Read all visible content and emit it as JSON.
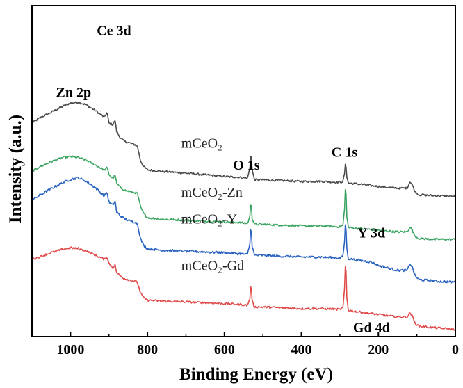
{
  "chart_data": {
    "type": "line",
    "xlabel": "Binding Energy (eV)",
    "ylabel": "Intensity (a.u.)",
    "xlim": [
      1100,
      0
    ],
    "x_reversed": true,
    "y_tick_labels": false,
    "grid": false,
    "x_ticks": [
      1000,
      800,
      600,
      400,
      200,
      0
    ],
    "series": [
      {
        "name": "mCeO₂",
        "color": "#4a4a4a",
        "offset": 3,
        "noise": 0.012,
        "points": [
          [
            1100,
            0.0
          ],
          [
            1080,
            0.06
          ],
          [
            1050,
            0.13
          ],
          [
            1020,
            0.2
          ],
          [
            1000,
            0.24
          ],
          [
            980,
            0.25
          ],
          [
            960,
            0.22
          ],
          [
            935,
            0.15
          ],
          [
            912,
            0.07
          ],
          [
            905,
            0.13
          ],
          [
            900,
            0.0
          ],
          [
            890,
            -0.02
          ],
          [
            884,
            0.03
          ],
          [
            880,
            -0.1
          ],
          [
            870,
            -0.18
          ],
          [
            860,
            -0.22
          ],
          [
            845,
            -0.24
          ],
          [
            832,
            -0.26
          ],
          [
            826,
            -0.28
          ],
          [
            818,
            -0.45
          ],
          [
            810,
            -0.52
          ],
          [
            800,
            -0.56
          ],
          [
            760,
            -0.58
          ],
          [
            700,
            -0.6
          ],
          [
            650,
            -0.62
          ],
          [
            600,
            -0.64
          ],
          [
            560,
            -0.65
          ],
          [
            540,
            -0.66
          ],
          [
            534,
            -0.54
          ],
          [
            531,
            -0.32
          ],
          [
            528,
            -0.56
          ],
          [
            522,
            -0.68
          ],
          [
            500,
            -0.68
          ],
          [
            450,
            -0.69
          ],
          [
            400,
            -0.7
          ],
          [
            350,
            -0.7
          ],
          [
            300,
            -0.71
          ],
          [
            292,
            -0.7
          ],
          [
            287,
            -0.58
          ],
          [
            285,
            -0.43
          ],
          [
            283,
            -0.62
          ],
          [
            278,
            -0.72
          ],
          [
            250,
            -0.73
          ],
          [
            200,
            -0.76
          ],
          [
            150,
            -0.78
          ],
          [
            125,
            -0.78
          ],
          [
            118,
            -0.7
          ],
          [
            112,
            -0.74
          ],
          [
            105,
            -0.82
          ],
          [
            95,
            -0.86
          ],
          [
            50,
            -0.87
          ],
          [
            0,
            -0.88
          ]
        ]
      },
      {
        "name": "mCeO₂-Zn",
        "color": "#3aa560",
        "offset": 2,
        "noise": 0.012,
        "points": [
          [
            1100,
            0.0
          ],
          [
            1080,
            0.06
          ],
          [
            1050,
            0.12
          ],
          [
            1020,
            0.17
          ],
          [
            1000,
            0.18
          ],
          [
            980,
            0.17
          ],
          [
            960,
            0.14
          ],
          [
            935,
            0.08
          ],
          [
            912,
            0.02
          ],
          [
            905,
            0.05
          ],
          [
            900,
            -0.03
          ],
          [
            890,
            -0.08
          ],
          [
            884,
            -0.04
          ],
          [
            880,
            -0.14
          ],
          [
            870,
            -0.19
          ],
          [
            860,
            -0.22
          ],
          [
            845,
            -0.24
          ],
          [
            832,
            -0.25
          ],
          [
            826,
            -0.26
          ],
          [
            818,
            -0.42
          ],
          [
            810,
            -0.5
          ],
          [
            800,
            -0.55
          ],
          [
            760,
            -0.57
          ],
          [
            700,
            -0.58
          ],
          [
            650,
            -0.59
          ],
          [
            600,
            -0.6
          ],
          [
            560,
            -0.61
          ],
          [
            540,
            -0.62
          ],
          [
            534,
            -0.54
          ],
          [
            531,
            -0.32
          ],
          [
            528,
            -0.56
          ],
          [
            522,
            -0.63
          ],
          [
            500,
            -0.63
          ],
          [
            450,
            -0.64
          ],
          [
            400,
            -0.65
          ],
          [
            350,
            -0.65
          ],
          [
            300,
            -0.66
          ],
          [
            292,
            -0.64
          ],
          [
            287,
            -0.4
          ],
          [
            285,
            -0.04
          ],
          [
            283,
            -0.5
          ],
          [
            278,
            -0.67
          ],
          [
            250,
            -0.68
          ],
          [
            200,
            -0.7
          ],
          [
            150,
            -0.72
          ],
          [
            125,
            -0.72
          ],
          [
            118,
            -0.66
          ],
          [
            112,
            -0.7
          ],
          [
            105,
            -0.77
          ],
          [
            95,
            -0.8
          ],
          [
            50,
            -0.81
          ],
          [
            0,
            -0.81
          ]
        ]
      },
      {
        "name": "mCeO₂-Y",
        "color": "#2a62c0",
        "offset": 1,
        "noise": 0.014,
        "points": [
          [
            1100,
            0.0
          ],
          [
            1080,
            0.06
          ],
          [
            1050,
            0.14
          ],
          [
            1020,
            0.21
          ],
          [
            1000,
            0.25
          ],
          [
            980,
            0.27
          ],
          [
            960,
            0.23
          ],
          [
            935,
            0.15
          ],
          [
            912,
            0.05
          ],
          [
            905,
            0.1
          ],
          [
            900,
            -0.02
          ],
          [
            890,
            -0.06
          ],
          [
            884,
            -0.01
          ],
          [
            880,
            -0.14
          ],
          [
            870,
            -0.19
          ],
          [
            860,
            -0.22
          ],
          [
            845,
            -0.25
          ],
          [
            832,
            -0.26
          ],
          [
            826,
            -0.28
          ],
          [
            818,
            -0.46
          ],
          [
            810,
            -0.54
          ],
          [
            800,
            -0.58
          ],
          [
            760,
            -0.6
          ],
          [
            700,
            -0.61
          ],
          [
            650,
            -0.62
          ],
          [
            600,
            -0.63
          ],
          [
            560,
            -0.64
          ],
          [
            540,
            -0.65
          ],
          [
            534,
            -0.52
          ],
          [
            531,
            -0.28
          ],
          [
            528,
            -0.55
          ],
          [
            522,
            -0.66
          ],
          [
            500,
            -0.66
          ],
          [
            450,
            -0.67
          ],
          [
            400,
            -0.68
          ],
          [
            350,
            -0.68
          ],
          [
            300,
            -0.69
          ],
          [
            292,
            -0.67
          ],
          [
            287,
            -0.45
          ],
          [
            285,
            -0.15
          ],
          [
            283,
            -0.55
          ],
          [
            278,
            -0.7
          ],
          [
            250,
            -0.72
          ],
          [
            220,
            -0.74
          ],
          [
            200,
            -0.78
          ],
          [
            170,
            -0.82
          ],
          [
            150,
            -0.84
          ],
          [
            125,
            -0.84
          ],
          [
            118,
            -0.76
          ],
          [
            112,
            -0.8
          ],
          [
            105,
            -0.9
          ],
          [
            95,
            -0.95
          ],
          [
            50,
            -0.97
          ],
          [
            0,
            -0.98
          ]
        ]
      },
      {
        "name": "mCeO₂-Gd",
        "color": "#e04a4a",
        "offset": 0,
        "noise": 0.012,
        "points": [
          [
            1100,
            0.0
          ],
          [
            1080,
            0.03
          ],
          [
            1050,
            0.08
          ],
          [
            1020,
            0.12
          ],
          [
            1000,
            0.14
          ],
          [
            980,
            0.13
          ],
          [
            960,
            0.1
          ],
          [
            935,
            0.05
          ],
          [
            912,
            0.0
          ],
          [
            905,
            0.03
          ],
          [
            900,
            -0.05
          ],
          [
            890,
            -0.1
          ],
          [
            884,
            -0.07
          ],
          [
            880,
            -0.16
          ],
          [
            870,
            -0.2
          ],
          [
            860,
            -0.23
          ],
          [
            845,
            -0.25
          ],
          [
            832,
            -0.26
          ],
          [
            826,
            -0.28
          ],
          [
            818,
            -0.4
          ],
          [
            810,
            -0.46
          ],
          [
            800,
            -0.49
          ],
          [
            760,
            -0.5
          ],
          [
            700,
            -0.51
          ],
          [
            650,
            -0.52
          ],
          [
            600,
            -0.53
          ],
          [
            560,
            -0.54
          ],
          [
            540,
            -0.55
          ],
          [
            534,
            -0.47
          ],
          [
            531,
            -0.27
          ],
          [
            528,
            -0.5
          ],
          [
            522,
            -0.57
          ],
          [
            500,
            -0.57
          ],
          [
            450,
            -0.58
          ],
          [
            400,
            -0.59
          ],
          [
            350,
            -0.59
          ],
          [
            300,
            -0.6
          ],
          [
            292,
            -0.58
          ],
          [
            287,
            -0.3
          ],
          [
            285,
            0.12
          ],
          [
            283,
            -0.42
          ],
          [
            278,
            -0.61
          ],
          [
            250,
            -0.63
          ],
          [
            200,
            -0.66
          ],
          [
            150,
            -0.69
          ],
          [
            125,
            -0.69
          ],
          [
            118,
            -0.64
          ],
          [
            112,
            -0.68
          ],
          [
            105,
            -0.76
          ],
          [
            95,
            -0.8
          ],
          [
            50,
            -0.82
          ],
          [
            0,
            -0.84
          ]
        ]
      }
    ],
    "annotations": [
      {
        "text": "Ce 3d",
        "x": 887,
        "series": 0,
        "dy": 1.05,
        "bold": true
      },
      {
        "text": "O 1s",
        "x": 543,
        "series": 0,
        "dy": 0.1,
        "bold": true
      },
      {
        "text": "C 1s",
        "x": 288,
        "series": 0,
        "dy": 0.2,
        "bold": true
      },
      {
        "text": "Zn 2p",
        "x": 992,
        "series": 1,
        "dy": 0.72,
        "bold": true
      },
      {
        "text": "Y 3d",
        "x": 218,
        "series": 2,
        "dy": 0.3,
        "bold": true
      },
      {
        "text": "Gd 4d",
        "x": 218,
        "series": 3,
        "dy": -0.22,
        "bold": true
      },
      {
        "text": "mCeO₂",
        "x": 712,
        "series": 0,
        "dy": 0.3,
        "bold": false
      },
      {
        "text": "mCeO₂-Zn",
        "x": 712,
        "series": 1,
        "dy": 0.28,
        "bold": false
      },
      {
        "text": "mCeO₂-Y",
        "x": 712,
        "series": 2,
        "dy": 0.33,
        "bold": false
      },
      {
        "text": "mCeO₂-Gd",
        "x": 712,
        "series": 3,
        "dy": 0.38,
        "bold": false
      }
    ]
  }
}
